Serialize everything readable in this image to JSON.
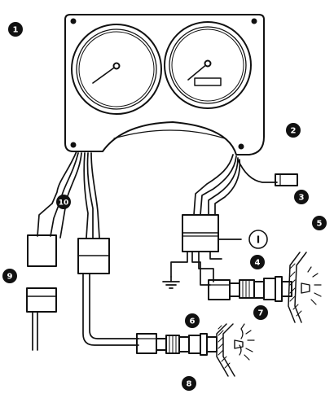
{
  "callouts": [
    {
      "id": "1",
      "label": "1"
    },
    {
      "id": "2",
      "label": "2"
    },
    {
      "id": "3",
      "label": "3"
    },
    {
      "id": "4",
      "label": "4"
    },
    {
      "id": "5",
      "label": "5"
    },
    {
      "id": "6",
      "label": "6"
    },
    {
      "id": "7",
      "label": "7"
    },
    {
      "id": "8",
      "label": "8"
    },
    {
      "id": "9",
      "label": "9"
    },
    {
      "id": "10",
      "label": "10"
    }
  ],
  "badge_label": "I",
  "colors": {
    "ink": "#111111",
    "paper": "#ffffff"
  }
}
